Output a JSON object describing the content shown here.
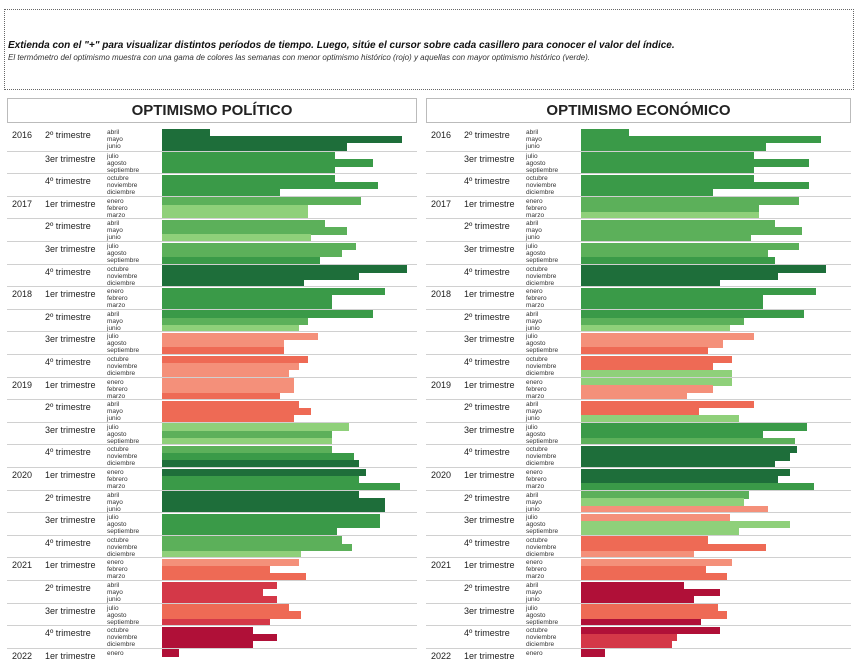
{
  "header": {
    "line1": "Extienda con el \"+\" para visualizar distintos períodos de tiempo. Luego, sitúe el cursor sobre cada casillero para conocer el valor del índice.",
    "line2": "El termómetro del optimismo muestra con una gama de colores las semanas con menor optimismo histórico (rojo) y aquellas con mayor optimismo histórico (verde)."
  },
  "panels": [
    {
      "title": "OPTIMISMO POLÍTICO"
    },
    {
      "title": "OPTIMISMO ECONÓMICO"
    }
  ],
  "colors": {
    "dark_green": "#1e6e3a",
    "green": "#3a9a48",
    "mid_green": "#5cb05a",
    "light_green": "#8fd07a",
    "salmon": "#f4907a",
    "red_orange": "#ee6a55",
    "red": "#d43848",
    "dark_red": "#b01038"
  },
  "rows": [
    {
      "year": "2016",
      "quarter": "2º trimestre",
      "months": [
        "abril",
        "mayo",
        "junio"
      ]
    },
    {
      "year": "",
      "quarter": "3er trimestre",
      "months": [
        "julio",
        "agosto",
        "septiembre"
      ]
    },
    {
      "year": "",
      "quarter": "4º trimestre",
      "months": [
        "octubre",
        "noviembre",
        "diciembre"
      ]
    },
    {
      "year": "2017",
      "quarter": "1er trimestre",
      "months": [
        "enero",
        "febrero",
        "marzo"
      ]
    },
    {
      "year": "",
      "quarter": "2º trimestre",
      "months": [
        "abril",
        "mayo",
        "junio"
      ]
    },
    {
      "year": "",
      "quarter": "3er trimestre",
      "months": [
        "julio",
        "agosto",
        "septiembre"
      ]
    },
    {
      "year": "",
      "quarter": "4º trimestre",
      "months": [
        "octubre",
        "noviembre",
        "diciembre"
      ]
    },
    {
      "year": "2018",
      "quarter": "1er trimestre",
      "months": [
        "enero",
        "febrero",
        "marzo"
      ]
    },
    {
      "year": "",
      "quarter": "2º trimestre",
      "months": [
        "abril",
        "mayo",
        "junio"
      ]
    },
    {
      "year": "",
      "quarter": "3er trimestre",
      "months": [
        "julio",
        "agosto",
        "septiembre"
      ]
    },
    {
      "year": "",
      "quarter": "4º trimestre",
      "months": [
        "octubre",
        "noviembre",
        "diciembre"
      ]
    },
    {
      "year": "2019",
      "quarter": "1er trimestre",
      "months": [
        "enero",
        "febrero",
        "marzo"
      ]
    },
    {
      "year": "",
      "quarter": "2º trimestre",
      "months": [
        "abril",
        "mayo",
        "junio"
      ]
    },
    {
      "year": "",
      "quarter": "3er trimestre",
      "months": [
        "julio",
        "agosto",
        "septiembre"
      ]
    },
    {
      "year": "",
      "quarter": "4º trimestre",
      "months": [
        "octubre",
        "noviembre",
        "diciembre"
      ]
    },
    {
      "year": "2020",
      "quarter": "1er trimestre",
      "months": [
        "enero",
        "febrero",
        "marzo"
      ]
    },
    {
      "year": "",
      "quarter": "2º trimestre",
      "months": [
        "abril",
        "mayo",
        "junio"
      ]
    },
    {
      "year": "",
      "quarter": "3er trimestre",
      "months": [
        "julio",
        "agosto",
        "septiembre"
      ]
    },
    {
      "year": "",
      "quarter": "4º trimestre",
      "months": [
        "octubre",
        "noviembre",
        "diciembre"
      ]
    },
    {
      "year": "2021",
      "quarter": "1er trimestre",
      "months": [
        "enero",
        "febrero",
        "marzo"
      ]
    },
    {
      "year": "",
      "quarter": "2º trimestre",
      "months": [
        "abril",
        "mayo",
        "junio"
      ]
    },
    {
      "year": "",
      "quarter": "3er trimestre",
      "months": [
        "julio",
        "agosto",
        "septiembre"
      ]
    },
    {
      "year": "",
      "quarter": "4º trimestre",
      "months": [
        "octubre",
        "noviembre",
        "diciembre"
      ]
    },
    {
      "year": "2022",
      "quarter": "1er trimestre",
      "months": [
        "enero"
      ]
    }
  ],
  "chart_data": [
    {
      "type": "bar",
      "title": "OPTIMISMO POLÍTICO",
      "series_levels": [
        [
          [
            0.2,
            "dark_green"
          ],
          [
            1.0,
            "dark_green"
          ],
          [
            0.77,
            "dark_green"
          ]
        ],
        [
          [
            0.72,
            "green"
          ],
          [
            0.88,
            "green"
          ],
          [
            0.72,
            "green"
          ]
        ],
        [
          [
            0.72,
            "green"
          ],
          [
            0.9,
            "green"
          ],
          [
            0.49,
            "green"
          ]
        ],
        [
          [
            0.83,
            "mid_green"
          ],
          [
            0.61,
            "light_green"
          ],
          [
            0.61,
            "light_green"
          ]
        ],
        [
          [
            0.68,
            "mid_green"
          ],
          [
            0.77,
            "mid_green"
          ],
          [
            0.62,
            "light_green"
          ]
        ],
        [
          [
            0.81,
            "mid_green"
          ],
          [
            0.75,
            "mid_green"
          ],
          [
            0.66,
            "green"
          ]
        ],
        [
          [
            1.02,
            "dark_green"
          ],
          [
            0.82,
            "dark_green"
          ],
          [
            0.59,
            "dark_green"
          ]
        ],
        [
          [
            0.93,
            "green"
          ],
          [
            0.71,
            "green"
          ],
          [
            0.71,
            "green"
          ]
        ],
        [
          [
            0.88,
            "green"
          ],
          [
            0.61,
            "mid_green"
          ],
          [
            0.57,
            "light_green"
          ]
        ],
        [
          [
            0.65,
            "salmon"
          ],
          [
            0.51,
            "salmon"
          ],
          [
            0.51,
            "red_orange"
          ]
        ],
        [
          [
            0.61,
            "red_orange"
          ],
          [
            0.57,
            "salmon"
          ],
          [
            0.53,
            "salmon"
          ]
        ],
        [
          [
            0.55,
            "salmon"
          ],
          [
            0.55,
            "salmon"
          ],
          [
            0.49,
            "red_orange"
          ]
        ],
        [
          [
            0.57,
            "red_orange"
          ],
          [
            0.62,
            "red_orange"
          ],
          [
            0.55,
            "red_orange"
          ]
        ],
        [
          [
            0.78,
            "light_green"
          ],
          [
            0.71,
            "mid_green"
          ],
          [
            0.71,
            "light_green"
          ]
        ],
        [
          [
            0.71,
            "mid_green"
          ],
          [
            0.8,
            "green"
          ],
          [
            0.82,
            "dark_green"
          ]
        ],
        [
          [
            0.85,
            "dark_green"
          ],
          [
            0.82,
            "green"
          ],
          [
            0.99,
            "green"
          ]
        ],
        [
          [
            0.82,
            "dark_green"
          ],
          [
            0.93,
            "dark_green"
          ],
          [
            0.93,
            "dark_green"
          ]
        ],
        [
          [
            0.91,
            "green"
          ],
          [
            0.91,
            "green"
          ],
          [
            0.73,
            "green"
          ]
        ],
        [
          [
            0.75,
            "mid_green"
          ],
          [
            0.79,
            "mid_green"
          ],
          [
            0.58,
            "light_green"
          ]
        ],
        [
          [
            0.57,
            "salmon"
          ],
          [
            0.45,
            "red_orange"
          ],
          [
            0.6,
            "red_orange"
          ]
        ],
        [
          [
            0.48,
            "red"
          ],
          [
            0.42,
            "red"
          ],
          [
            0.48,
            "red"
          ]
        ],
        [
          [
            0.53,
            "red_orange"
          ],
          [
            0.58,
            "red_orange"
          ],
          [
            0.45,
            "red"
          ]
        ],
        [
          [
            0.38,
            "dark_red"
          ],
          [
            0.48,
            "dark_red"
          ],
          [
            0.38,
            "dark_red"
          ]
        ],
        [
          [
            0.07,
            "dark_red"
          ]
        ]
      ]
    },
    {
      "type": "bar",
      "title": "OPTIMISMO ECONÓMICO",
      "series_levels": [
        [
          [
            0.2,
            "green"
          ],
          [
            1.0,
            "green"
          ],
          [
            0.77,
            "green"
          ]
        ],
        [
          [
            0.72,
            "green"
          ],
          [
            0.95,
            "green"
          ],
          [
            0.72,
            "green"
          ]
        ],
        [
          [
            0.72,
            "green"
          ],
          [
            0.95,
            "green"
          ],
          [
            0.55,
            "green"
          ]
        ],
        [
          [
            0.91,
            "mid_green"
          ],
          [
            0.74,
            "mid_green"
          ],
          [
            0.74,
            "light_green"
          ]
        ],
        [
          [
            0.81,
            "mid_green"
          ],
          [
            0.92,
            "mid_green"
          ],
          [
            0.71,
            "mid_green"
          ]
        ],
        [
          [
            0.91,
            "mid_green"
          ],
          [
            0.78,
            "mid_green"
          ],
          [
            0.81,
            "green"
          ]
        ],
        [
          [
            1.02,
            "dark_green"
          ],
          [
            0.82,
            "dark_green"
          ],
          [
            0.58,
            "dark_green"
          ]
        ],
        [
          [
            0.98,
            "green"
          ],
          [
            0.76,
            "green"
          ],
          [
            0.76,
            "green"
          ]
        ],
        [
          [
            0.93,
            "green"
          ],
          [
            0.68,
            "mid_green"
          ],
          [
            0.62,
            "light_green"
          ]
        ],
        [
          [
            0.72,
            "salmon"
          ],
          [
            0.59,
            "salmon"
          ],
          [
            0.53,
            "red_orange"
          ]
        ],
        [
          [
            0.63,
            "red_orange"
          ],
          [
            0.55,
            "red_orange"
          ],
          [
            0.63,
            "light_green"
          ]
        ],
        [
          [
            0.63,
            "light_green"
          ],
          [
            0.55,
            "salmon"
          ],
          [
            0.44,
            "salmon"
          ]
        ],
        [
          [
            0.72,
            "red_orange"
          ],
          [
            0.49,
            "red_orange"
          ],
          [
            0.66,
            "light_green"
          ]
        ],
        [
          [
            0.94,
            "green"
          ],
          [
            0.76,
            "green"
          ],
          [
            0.89,
            "mid_green"
          ]
        ],
        [
          [
            0.9,
            "dark_green"
          ],
          [
            0.87,
            "dark_green"
          ],
          [
            0.81,
            "dark_green"
          ]
        ],
        [
          [
            0.87,
            "dark_green"
          ],
          [
            0.82,
            "dark_green"
          ],
          [
            0.97,
            "green"
          ]
        ],
        [
          [
            0.7,
            "mid_green"
          ],
          [
            0.68,
            "light_green"
          ],
          [
            0.78,
            "salmon"
          ]
        ],
        [
          [
            0.62,
            "salmon"
          ],
          [
            0.87,
            "light_green"
          ],
          [
            0.66,
            "light_green"
          ]
        ],
        [
          [
            0.53,
            "red_orange"
          ],
          [
            0.77,
            "red_orange"
          ],
          [
            0.47,
            "salmon"
          ]
        ],
        [
          [
            0.63,
            "salmon"
          ],
          [
            0.52,
            "red_orange"
          ],
          [
            0.61,
            "red_orange"
          ]
        ],
        [
          [
            0.43,
            "dark_red"
          ],
          [
            0.58,
            "dark_red"
          ],
          [
            0.47,
            "dark_red"
          ]
        ],
        [
          [
            0.57,
            "red_orange"
          ],
          [
            0.61,
            "red_orange"
          ],
          [
            0.5,
            "dark_red"
          ]
        ],
        [
          [
            0.58,
            "dark_red"
          ],
          [
            0.4,
            "red"
          ],
          [
            0.38,
            "red"
          ]
        ],
        [
          [
            0.1,
            "dark_red"
          ]
        ]
      ]
    }
  ]
}
